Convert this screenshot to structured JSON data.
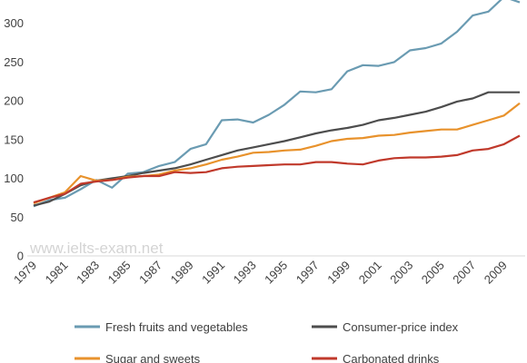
{
  "watermark": "www.ielts-exam.net",
  "chart_data": {
    "type": "line",
    "title": "",
    "xlabel": "",
    "ylabel": "",
    "ylim": [
      0,
      330
    ],
    "yticks": [
      0,
      50,
      100,
      150,
      200,
      250,
      300
    ],
    "grid": false,
    "legend_position": "bottom",
    "x": [
      1979,
      1980,
      1981,
      1982,
      1983,
      1984,
      1985,
      1986,
      1987,
      1988,
      1989,
      1990,
      1991,
      1992,
      1993,
      1994,
      1995,
      1996,
      1997,
      1998,
      1999,
      2000,
      2001,
      2002,
      2003,
      2004,
      2005,
      2006,
      2007,
      2008,
      2009,
      2010
    ],
    "xtick_labels": [
      "1979",
      "1981",
      "1983",
      "1985",
      "1987",
      "1989",
      "1991",
      "1993",
      "1995",
      "1997",
      "1999",
      "2001",
      "2003",
      "2005",
      "2007",
      "2009"
    ],
    "series": [
      {
        "name": "Fresh fruits and vegetables",
        "color": "#6a9bb2",
        "values": [
          64,
          72,
          75,
          86,
          98,
          88,
          106,
          108,
          116,
          121,
          138,
          144,
          175,
          176,
          172,
          182,
          195,
          212,
          211,
          215,
          238,
          246,
          245,
          250,
          265,
          268,
          274,
          289,
          310,
          315,
          334,
          327
        ]
      },
      {
        "name": "Consumer-price index",
        "color": "#4d4d4d",
        "values": [
          65,
          70,
          80,
          91,
          97,
          100,
          103,
          107,
          110,
          113,
          118,
          124,
          130,
          136,
          140,
          144,
          148,
          153,
          158,
          162,
          165,
          169,
          175,
          178,
          182,
          186,
          192,
          199,
          203,
          211,
          211,
          211
        ]
      },
      {
        "name": "Sugar and sweets",
        "color": "#e8922c",
        "values": [
          68,
          75,
          82,
          103,
          97,
          98,
          102,
          103,
          105,
          110,
          113,
          118,
          124,
          128,
          133,
          134,
          136,
          137,
          142,
          148,
          151,
          152,
          155,
          156,
          159,
          161,
          163,
          163,
          169,
          175,
          181,
          197
        ]
      },
      {
        "name": "Carbonated drinks",
        "color": "#c0392b",
        "values": [
          69,
          75,
          80,
          93,
          96,
          98,
          101,
          103,
          103,
          108,
          107,
          108,
          113,
          115,
          116,
          117,
          118,
          118,
          121,
          121,
          119,
          118,
          123,
          126,
          127,
          127,
          128,
          130,
          136,
          138,
          144,
          155
        ]
      }
    ]
  }
}
